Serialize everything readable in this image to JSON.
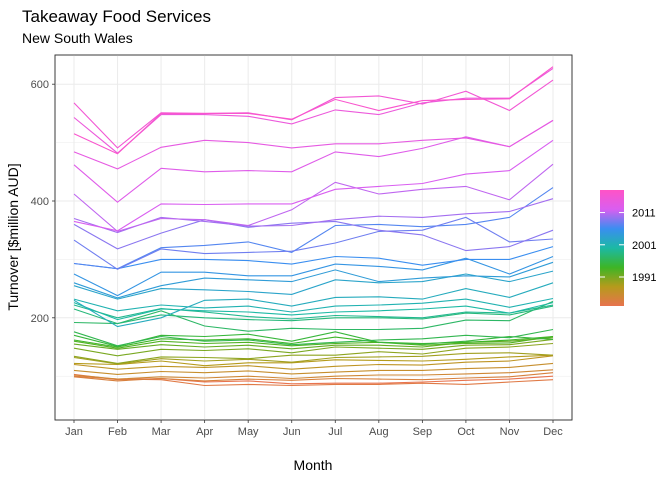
{
  "chart_data": {
    "type": "line",
    "title": "Takeaway Food Services",
    "subtitle": "New South Wales",
    "xlabel": "Month",
    "ylabel": "Turnover [$million AUD]",
    "categories": [
      "Jan",
      "Feb",
      "Mar",
      "Apr",
      "May",
      "Jun",
      "Jul",
      "Aug",
      "Sep",
      "Oct",
      "Nov",
      "Dec"
    ],
    "y_ticks": [
      200,
      400,
      600
    ],
    "ylim": [
      25,
      650
    ],
    "grid": true,
    "legend": {
      "placement": "right",
      "type": "colorbar",
      "ticks": [
        1991,
        2001,
        2011
      ],
      "range": [
        1982,
        2018
      ],
      "colors": [
        "#e8734e",
        "#b59b1c",
        "#3db526",
        "#1cb9a4",
        "#3a8ef0",
        "#d95ef0",
        "#ff53c6"
      ]
    },
    "series": [
      {
        "year": 1982,
        "values": [
          103,
          94,
          96,
          90,
          92,
          87,
          88,
          88,
          90,
          93,
          95,
          100
        ]
      },
      {
        "year": 1983,
        "values": [
          100,
          95,
          94,
          84,
          86,
          84,
          86,
          86,
          88,
          86,
          90,
          94
        ]
      },
      {
        "year": 1984,
        "values": [
          99,
          92,
          96,
          92,
          95,
          93,
          96,
          95,
          94,
          97,
          99,
          106
        ]
      },
      {
        "year": 1985,
        "values": [
          102,
          95,
          99,
          97,
          100,
          96,
          100,
          102,
          102,
          104,
          106,
          111
        ]
      },
      {
        "year": 1986,
        "values": [
          110,
          103,
          108,
          106,
          109,
          104,
          107,
          110,
          110,
          113,
          115,
          122
        ]
      },
      {
        "year": 1987,
        "values": [
          120,
          112,
          117,
          115,
          118,
          112,
          117,
          120,
          119,
          124,
          126,
          135
        ]
      },
      {
        "year": 1988,
        "values": [
          122,
          120,
          126,
          118,
          123,
          123,
          128,
          127,
          126,
          129,
          133,
          136
        ]
      },
      {
        "year": 1989,
        "values": [
          132,
          121,
          130,
          126,
          129,
          124,
          132,
          133,
          134,
          139,
          140,
          136
        ]
      },
      {
        "year": 1990,
        "values": [
          134,
          122,
          133,
          132,
          130,
          136,
          136,
          142,
          138,
          148,
          150,
          156
        ]
      },
      {
        "year": 1991,
        "values": [
          148,
          135,
          146,
          144,
          147,
          140,
          150,
          148,
          146,
          153,
          154,
          163
        ]
      },
      {
        "year": 1992,
        "values": [
          155,
          146,
          154,
          150,
          153,
          147,
          153,
          153,
          150,
          158,
          160,
          166
        ]
      },
      {
        "year": 1993,
        "values": [
          160,
          148,
          160,
          156,
          158,
          152,
          156,
          158,
          153,
          156,
          157,
          168
        ]
      },
      {
        "year": 1994,
        "values": [
          162,
          150,
          164,
          162,
          164,
          156,
          167,
          158,
          156,
          158,
          162,
          168
        ]
      },
      {
        "year": 1995,
        "values": [
          170,
          151,
          170,
          168,
          172,
          160,
          176,
          158,
          155,
          160,
          168,
          163
        ]
      },
      {
        "year": 1996,
        "values": [
          176,
          152,
          168,
          160,
          162,
          154,
          158,
          162,
          164,
          170,
          166,
          180
        ]
      },
      {
        "year": 1997,
        "values": [
          192,
          190,
          212,
          186,
          177,
          182,
          180,
          180,
          182,
          196,
          195,
          228
        ]
      },
      {
        "year": 1998,
        "values": [
          215,
          190,
          205,
          200,
          197,
          195,
          200,
          200,
          198,
          208,
          205,
          220
        ]
      },
      {
        "year": 1999,
        "values": [
          222,
          200,
          216,
          210,
          202,
          198,
          204,
          202,
          200,
          210,
          208,
          222
        ]
      },
      {
        "year": 2000,
        "values": [
          226,
          197,
          215,
          212,
          210,
          205,
          210,
          212,
          215,
          220,
          208,
          226
        ]
      },
      {
        "year": 2001,
        "values": [
          232,
          212,
          222,
          217,
          220,
          210,
          220,
          222,
          225,
          232,
          218,
          233
        ]
      },
      {
        "year": 2002,
        "values": [
          230,
          185,
          200,
          230,
          232,
          220,
          235,
          236,
          232,
          250,
          235,
          260
        ]
      },
      {
        "year": 2003,
        "values": [
          255,
          232,
          250,
          248,
          245,
          240,
          265,
          260,
          262,
          275,
          262,
          280
        ]
      },
      {
        "year": 2004,
        "values": [
          260,
          234,
          255,
          268,
          265,
          262,
          282,
          262,
          268,
          272,
          270,
          295
        ]
      },
      {
        "year": 2005,
        "values": [
          275,
          238,
          278,
          278,
          272,
          272,
          292,
          288,
          282,
          302,
          275,
          305
        ]
      },
      {
        "year": 2006,
        "values": [
          293,
          284,
          300,
          300,
          298,
          292,
          305,
          302,
          290,
          300,
          300,
          322
        ]
      },
      {
        "year": 2007,
        "values": [
          293,
          284,
          320,
          324,
          330,
          312,
          358,
          360,
          356,
          360,
          372,
          423
        ]
      },
      {
        "year": 2008,
        "values": [
          333,
          283,
          318,
          310,
          312,
          314,
          328,
          348,
          350,
          372,
          330,
          335
        ]
      },
      {
        "year": 2009,
        "values": [
          360,
          318,
          345,
          368,
          355,
          362,
          365,
          350,
          342,
          315,
          322,
          350
        ]
      },
      {
        "year": 2010,
        "values": [
          370,
          346,
          372,
          365,
          357,
          358,
          368,
          374,
          372,
          378,
          382,
          404
        ]
      },
      {
        "year": 2011,
        "values": [
          412,
          348,
          370,
          368,
          358,
          385,
          432,
          412,
          420,
          425,
          402,
          463
        ]
      },
      {
        "year": 2012,
        "values": [
          365,
          349,
          395,
          394,
          395,
          395,
          420,
          425,
          430,
          446,
          452,
          504
        ]
      },
      {
        "year": 2013,
        "values": [
          462,
          398,
          456,
          450,
          452,
          450,
          484,
          476,
          490,
          510,
          493,
          538
        ]
      },
      {
        "year": 2014,
        "values": [
          484,
          455,
          492,
          504,
          500,
          491,
          498,
          498,
          504,
          508,
          493,
          538
        ]
      },
      {
        "year": 2015,
        "values": [
          543,
          482,
          548,
          548,
          545,
          532,
          556,
          548,
          568,
          576,
          576,
          627
        ]
      },
      {
        "year": 2016,
        "values": [
          568,
          491,
          551,
          550,
          551,
          539,
          577,
          580,
          566,
          588,
          555,
          607
        ]
      },
      {
        "year": 2017,
        "values": [
          515,
          481,
          550,
          550,
          550,
          540,
          574,
          555,
          572,
          574,
          575,
          630
        ]
      }
    ]
  }
}
